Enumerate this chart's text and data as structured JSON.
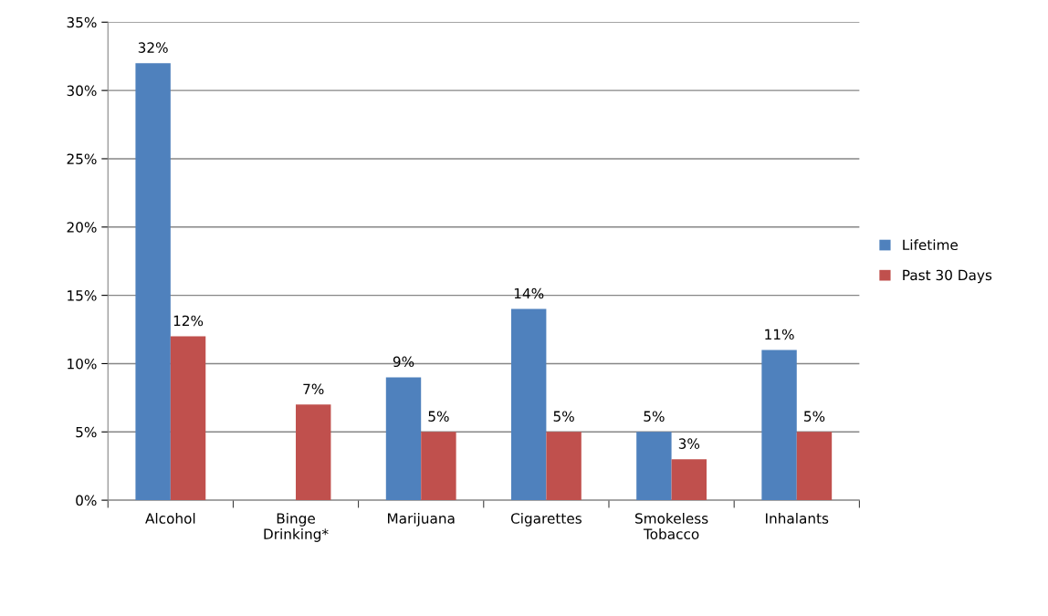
{
  "chart_data": {
    "type": "bar",
    "categories": [
      "Alcohol",
      "Binge\nDrinking*",
      "Marijuana",
      "Cigarettes",
      "Smokeless\nTobacco",
      "Inhalants"
    ],
    "series": [
      {
        "name": "Lifetime",
        "color": "#4f81bd",
        "values": [
          32,
          null,
          9,
          14,
          5,
          11
        ],
        "value_labels": [
          "32%",
          null,
          "9%",
          "14%",
          "5%",
          "11%"
        ]
      },
      {
        "name": "Past 30 Days",
        "color": "#c0504d",
        "values": [
          12,
          7,
          5,
          5,
          3,
          5
        ],
        "value_labels": [
          "12%",
          "7%",
          "5%",
          "5%",
          "3%",
          "5%"
        ]
      }
    ],
    "ylim": [
      0,
      35
    ],
    "yticks": [
      {
        "value": 0,
        "label": "0%"
      },
      {
        "value": 5,
        "label": "5%"
      },
      {
        "value": 10,
        "label": "10%"
      },
      {
        "value": 15,
        "label": "15%"
      },
      {
        "value": 20,
        "label": "20%"
      },
      {
        "value": 25,
        "label": "25%"
      },
      {
        "value": 30,
        "label": "30%"
      },
      {
        "value": 35,
        "label": "35%"
      }
    ],
    "grid": "y",
    "legend": "right"
  }
}
